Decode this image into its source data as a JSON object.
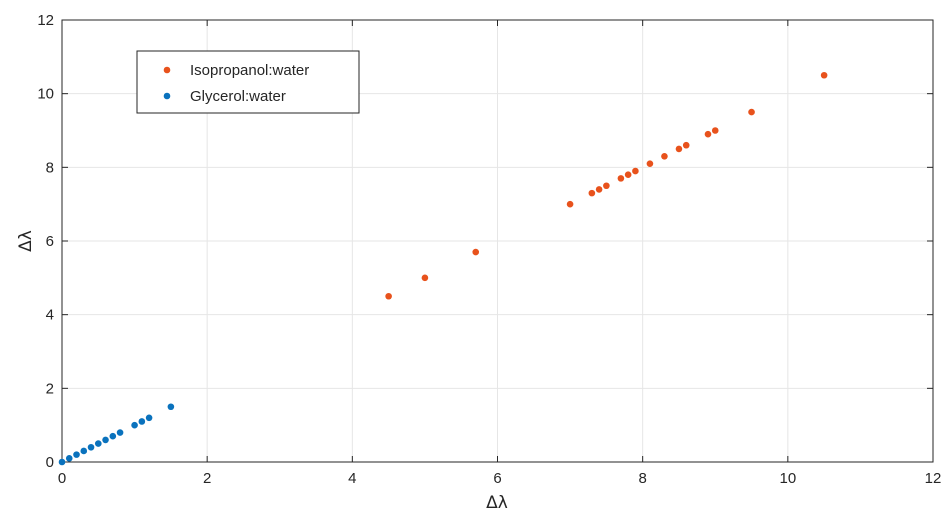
{
  "chart_data": {
    "type": "scatter",
    "title": "",
    "xlabel": "Δλ",
    "ylabel": "Δλ",
    "xlim": [
      0,
      12
    ],
    "ylim": [
      0,
      12
    ],
    "xticks": [
      0,
      2,
      4,
      6,
      8,
      10,
      12
    ],
    "yticks": [
      0,
      2,
      4,
      6,
      8,
      10,
      12
    ],
    "grid": true,
    "legend_position": "top-left",
    "series": [
      {
        "name": "Isopropanol:water",
        "color": "#e8521c",
        "points": [
          [
            4.5,
            4.5
          ],
          [
            5.0,
            5.0
          ],
          [
            5.7,
            5.7
          ],
          [
            7.0,
            7.0
          ],
          [
            7.3,
            7.3
          ],
          [
            7.4,
            7.4
          ],
          [
            7.5,
            7.5
          ],
          [
            7.7,
            7.7
          ],
          [
            7.8,
            7.8
          ],
          [
            7.9,
            7.9
          ],
          [
            8.1,
            8.1
          ],
          [
            8.3,
            8.3
          ],
          [
            8.5,
            8.5
          ],
          [
            8.6,
            8.6
          ],
          [
            8.9,
            8.9
          ],
          [
            9.0,
            9.0
          ],
          [
            9.5,
            9.5
          ],
          [
            10.5,
            10.5
          ]
        ]
      },
      {
        "name": "Glycerol:water",
        "color": "#0a72bd",
        "points": [
          [
            0.0,
            0.0
          ],
          [
            0.1,
            0.1
          ],
          [
            0.2,
            0.2
          ],
          [
            0.3,
            0.3
          ],
          [
            0.4,
            0.4
          ],
          [
            0.5,
            0.5
          ],
          [
            0.6,
            0.6
          ],
          [
            0.7,
            0.7
          ],
          [
            0.8,
            0.8
          ],
          [
            1.0,
            1.0
          ],
          [
            1.1,
            1.1
          ],
          [
            1.2,
            1.2
          ],
          [
            1.5,
            1.5
          ]
        ]
      }
    ]
  }
}
